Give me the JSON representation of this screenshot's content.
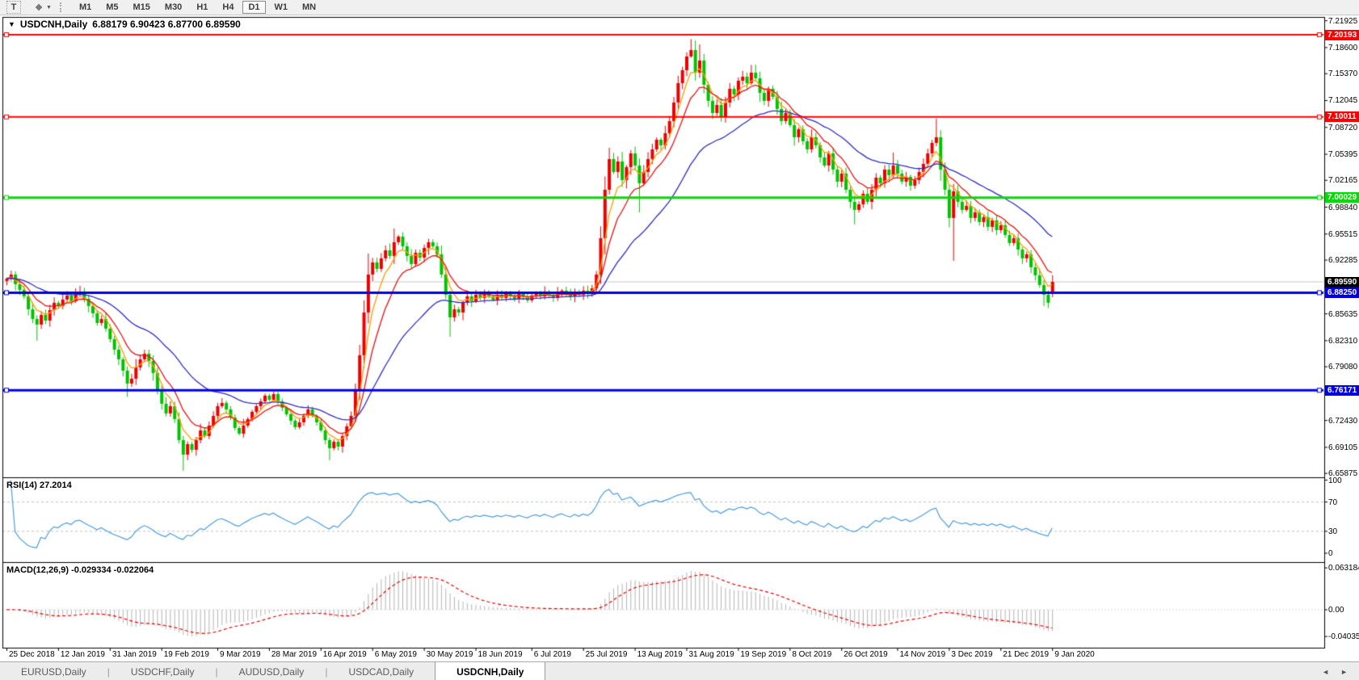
{
  "toolbar": {
    "tools": [
      {
        "name": "text-label-tool",
        "glyph": "T"
      },
      {
        "name": "objects-tool",
        "glyph": "❖"
      }
    ],
    "timeframes": [
      "M1",
      "M5",
      "M15",
      "M30",
      "H1",
      "H4",
      "D1",
      "W1",
      "MN"
    ],
    "active_timeframe": "D1"
  },
  "chart": {
    "symbol": "USDCNH,Daily",
    "ohlc_display": "6.88179 6.90423 6.87700 6.89590",
    "open": "6.88179",
    "high": "6.90423",
    "low": "6.87700",
    "close": "6.89590"
  },
  "rsi_panel": {
    "label": "RSI(14) 27.2014",
    "period": 14,
    "value": 27.2014,
    "levels": [
      100,
      70,
      30,
      0
    ]
  },
  "macd_panel": {
    "label": "MACD(12,26,9) -0.029334 -0.022064",
    "macd_value": -0.029334,
    "signal_value": -0.022064,
    "axis_labels": [
      {
        "v": 0.063184,
        "t": "0.063184"
      },
      {
        "v": 0.0,
        "t": "0.00"
      },
      {
        "v": -0.040355,
        "t": "-0.040355"
      }
    ]
  },
  "x_axis": {
    "labels": [
      "25 Dec 2018",
      "12 Jan 2019",
      "31 Jan 2019",
      "19 Feb 2019",
      "9 Mar 2019",
      "28 Mar 2019",
      "16 Apr 2019",
      "6 May 2019",
      "30 May 2019",
      "18 Jun 2019",
      "6 Jul 2019",
      "25 Jul 2019",
      "13 Aug 2019",
      "31 Aug 2019",
      "19 Sep 2019",
      "8 Oct 2019",
      "26 Oct 2019",
      "14 Nov 2019",
      "3 Dec 2019",
      "21 Dec 2019",
      "9 Jan 2020"
    ]
  },
  "price_axis": {
    "ticks": [
      7.21925,
      7.186,
      7.1537,
      7.12045,
      7.0872,
      7.05395,
      7.02165,
      6.9884,
      6.95515,
      6.92285,
      6.8896,
      6.85635,
      6.8231,
      6.7908,
      6.75755,
      6.7243,
      6.69105,
      6.65875
    ]
  },
  "tabs": {
    "items": [
      "EURUSD,Daily",
      "USDCHF,Daily",
      "AUDUSD,Daily",
      "USDCAD,Daily",
      "USDCNH,Daily"
    ],
    "active": "USDCNH,Daily"
  },
  "chart_data": {
    "type": "candlestick",
    "symbol": "USDCNH",
    "timeframe": "Daily",
    "title": "USDCNH,Daily  6.88179 6.90423 6.87700 6.89590",
    "ylim": [
      6.65875,
      7.21925
    ],
    "colors": {
      "bull_candle": "#ee0000",
      "bear_candle": "#00c400",
      "ma_fast": "#ff9c00",
      "ma_mid": "#ee1111",
      "ma_slow": "#2d2dc4",
      "rsi_line": "#4a9ee0",
      "macd_hist": "#b4b4b4",
      "macd_signal": "#ee0000",
      "current_price_line": "#c8c8c8",
      "level_red": "#ff0000",
      "level_green": "#00dd00",
      "level_blue": "#0000e0"
    },
    "horizontal_lines": [
      {
        "price": 7.20193,
        "label": "7.20193",
        "color": "#ff0000",
        "width": 2
      },
      {
        "price": 7.10011,
        "label": "7.10011",
        "color": "#ff0000",
        "width": 2
      },
      {
        "price": 7.00029,
        "label": "7.00029",
        "color": "#00dd00",
        "width": 3
      },
      {
        "price": 6.8825,
        "label": "6.88250",
        "color": "#0000e0",
        "width": 3
      },
      {
        "price": 6.76171,
        "label": "6.76171",
        "color": "#0000e0",
        "width": 3
      }
    ],
    "current_price": {
      "price": 6.8959,
      "label": "6.89590",
      "badge_color": "#000000"
    },
    "moving_averages": [
      {
        "type": "ema",
        "period": 5,
        "color": "#ff9c00"
      },
      {
        "type": "ema",
        "period": 10,
        "color": "#ee1111"
      },
      {
        "type": "ema",
        "period": 30,
        "color": "#2d2dc4"
      }
    ],
    "indicators": {
      "rsi": {
        "period": 14,
        "last": 27.2014
      },
      "macd": {
        "fast": 12,
        "slow": 26,
        "signal": 9,
        "last_macd": -0.029334,
        "last_signal": -0.022064,
        "ylim": [
          -0.040355,
          0.063184
        ]
      }
    },
    "first_open": 6.897,
    "closes": [
      6.9,
      6.905,
      6.893,
      6.886,
      6.878,
      6.862,
      6.85,
      6.843,
      6.855,
      6.848,
      6.861,
      6.87,
      6.866,
      6.874,
      6.879,
      6.872,
      6.882,
      6.884,
      6.875,
      6.866,
      6.857,
      6.845,
      6.85,
      6.838,
      6.825,
      6.812,
      6.8,
      6.786,
      6.77,
      6.776,
      6.79,
      6.8,
      6.807,
      6.798,
      6.783,
      6.762,
      6.745,
      6.733,
      6.742,
      6.726,
      6.7,
      6.682,
      6.695,
      6.688,
      6.7,
      6.712,
      6.705,
      6.718,
      6.73,
      6.742,
      6.746,
      6.738,
      6.728,
      6.715,
      6.708,
      6.718,
      6.726,
      6.735,
      6.742,
      6.748,
      6.755,
      6.75,
      6.757,
      6.748,
      6.74,
      6.732,
      6.724,
      6.716,
      6.722,
      6.73,
      6.738,
      6.73,
      6.722,
      6.712,
      6.7,
      6.69,
      6.698,
      6.692,
      6.705,
      6.717,
      6.73,
      6.762,
      6.805,
      6.858,
      6.905,
      6.92,
      6.912,
      6.925,
      6.935,
      6.928,
      6.945,
      6.952,
      6.94,
      6.928,
      6.918,
      6.932,
      6.926,
      6.938,
      6.945,
      6.94,
      6.93,
      6.905,
      6.88,
      6.852,
      6.862,
      6.858,
      6.87,
      6.878,
      6.872,
      6.88,
      6.876,
      6.882,
      6.878,
      6.874,
      6.88,
      6.876,
      6.882,
      6.879,
      6.875,
      6.881,
      6.877,
      6.873,
      6.879,
      6.882,
      6.878,
      6.884,
      6.88,
      6.876,
      6.882,
      6.885,
      6.881,
      6.878,
      6.884,
      6.88,
      6.885,
      6.882,
      6.888,
      6.905,
      6.95,
      7.01,
      7.048,
      7.032,
      7.045,
      7.022,
      7.038,
      7.055,
      7.04,
      7.018,
      7.032,
      7.048,
      7.06,
      7.072,
      7.065,
      7.08,
      7.095,
      7.118,
      7.142,
      7.158,
      7.175,
      7.183,
      7.155,
      7.17,
      7.14,
      7.12,
      7.105,
      7.115,
      7.1,
      7.118,
      7.135,
      7.128,
      7.145,
      7.15,
      7.142,
      7.155,
      7.148,
      7.13,
      7.12,
      7.135,
      7.125,
      7.11,
      7.095,
      7.105,
      7.09,
      7.075,
      7.085,
      7.07,
      7.06,
      7.075,
      7.065,
      7.05,
      7.04,
      7.055,
      7.035,
      7.02,
      7.03,
      7.01,
      6.995,
      6.985,
      6.992,
      7.005,
      6.995,
      7.01,
      7.025,
      7.018,
      7.035,
      7.028,
      7.04,
      7.03,
      7.02,
      7.026,
      7.015,
      7.022,
      7.032,
      7.042,
      7.055,
      7.068,
      7.075,
      7.035,
      7.01,
      6.975,
      7.008,
      6.995,
      6.985,
      6.99,
      6.975,
      6.982,
      6.97,
      6.976,
      6.964,
      6.972,
      6.96,
      6.966,
      6.954,
      6.944,
      6.95,
      6.936,
      6.925,
      6.93,
      6.914,
      6.904,
      6.892,
      6.88,
      6.87,
      6.8959
    ],
    "open_overrides": {
      "243": 6.88179
    },
    "wick_overrides": {
      "7": {
        "l": 6.823
      },
      "17": {
        "h": 6.891
      },
      "28": {
        "l": 6.7535
      },
      "41": {
        "l": 6.662
      },
      "50": {
        "h": 6.752
      },
      "62": {
        "h": 6.76
      },
      "75": {
        "l": 6.675
      },
      "84": {
        "h": 6.931
      },
      "90": {
        "h": 6.962
      },
      "103": {
        "l": 6.828
      },
      "140": {
        "h": 7.062
      },
      "147": {
        "l": 6.982
      },
      "155": {
        "h": 7.125
      },
      "159": {
        "h": 7.1965
      },
      "161": {
        "h": 7.19
      },
      "174": {
        "h": 7.165
      },
      "197": {
        "l": 6.967
      },
      "206": {
        "h": 7.056
      },
      "216": {
        "h": 7.098
      },
      "220": {
        "l": 6.922
      },
      "241": {
        "l": 6.866
      },
      "242": {
        "l": 6.8635
      },
      "243": {
        "h": 6.90423,
        "l": 6.877
      }
    }
  }
}
